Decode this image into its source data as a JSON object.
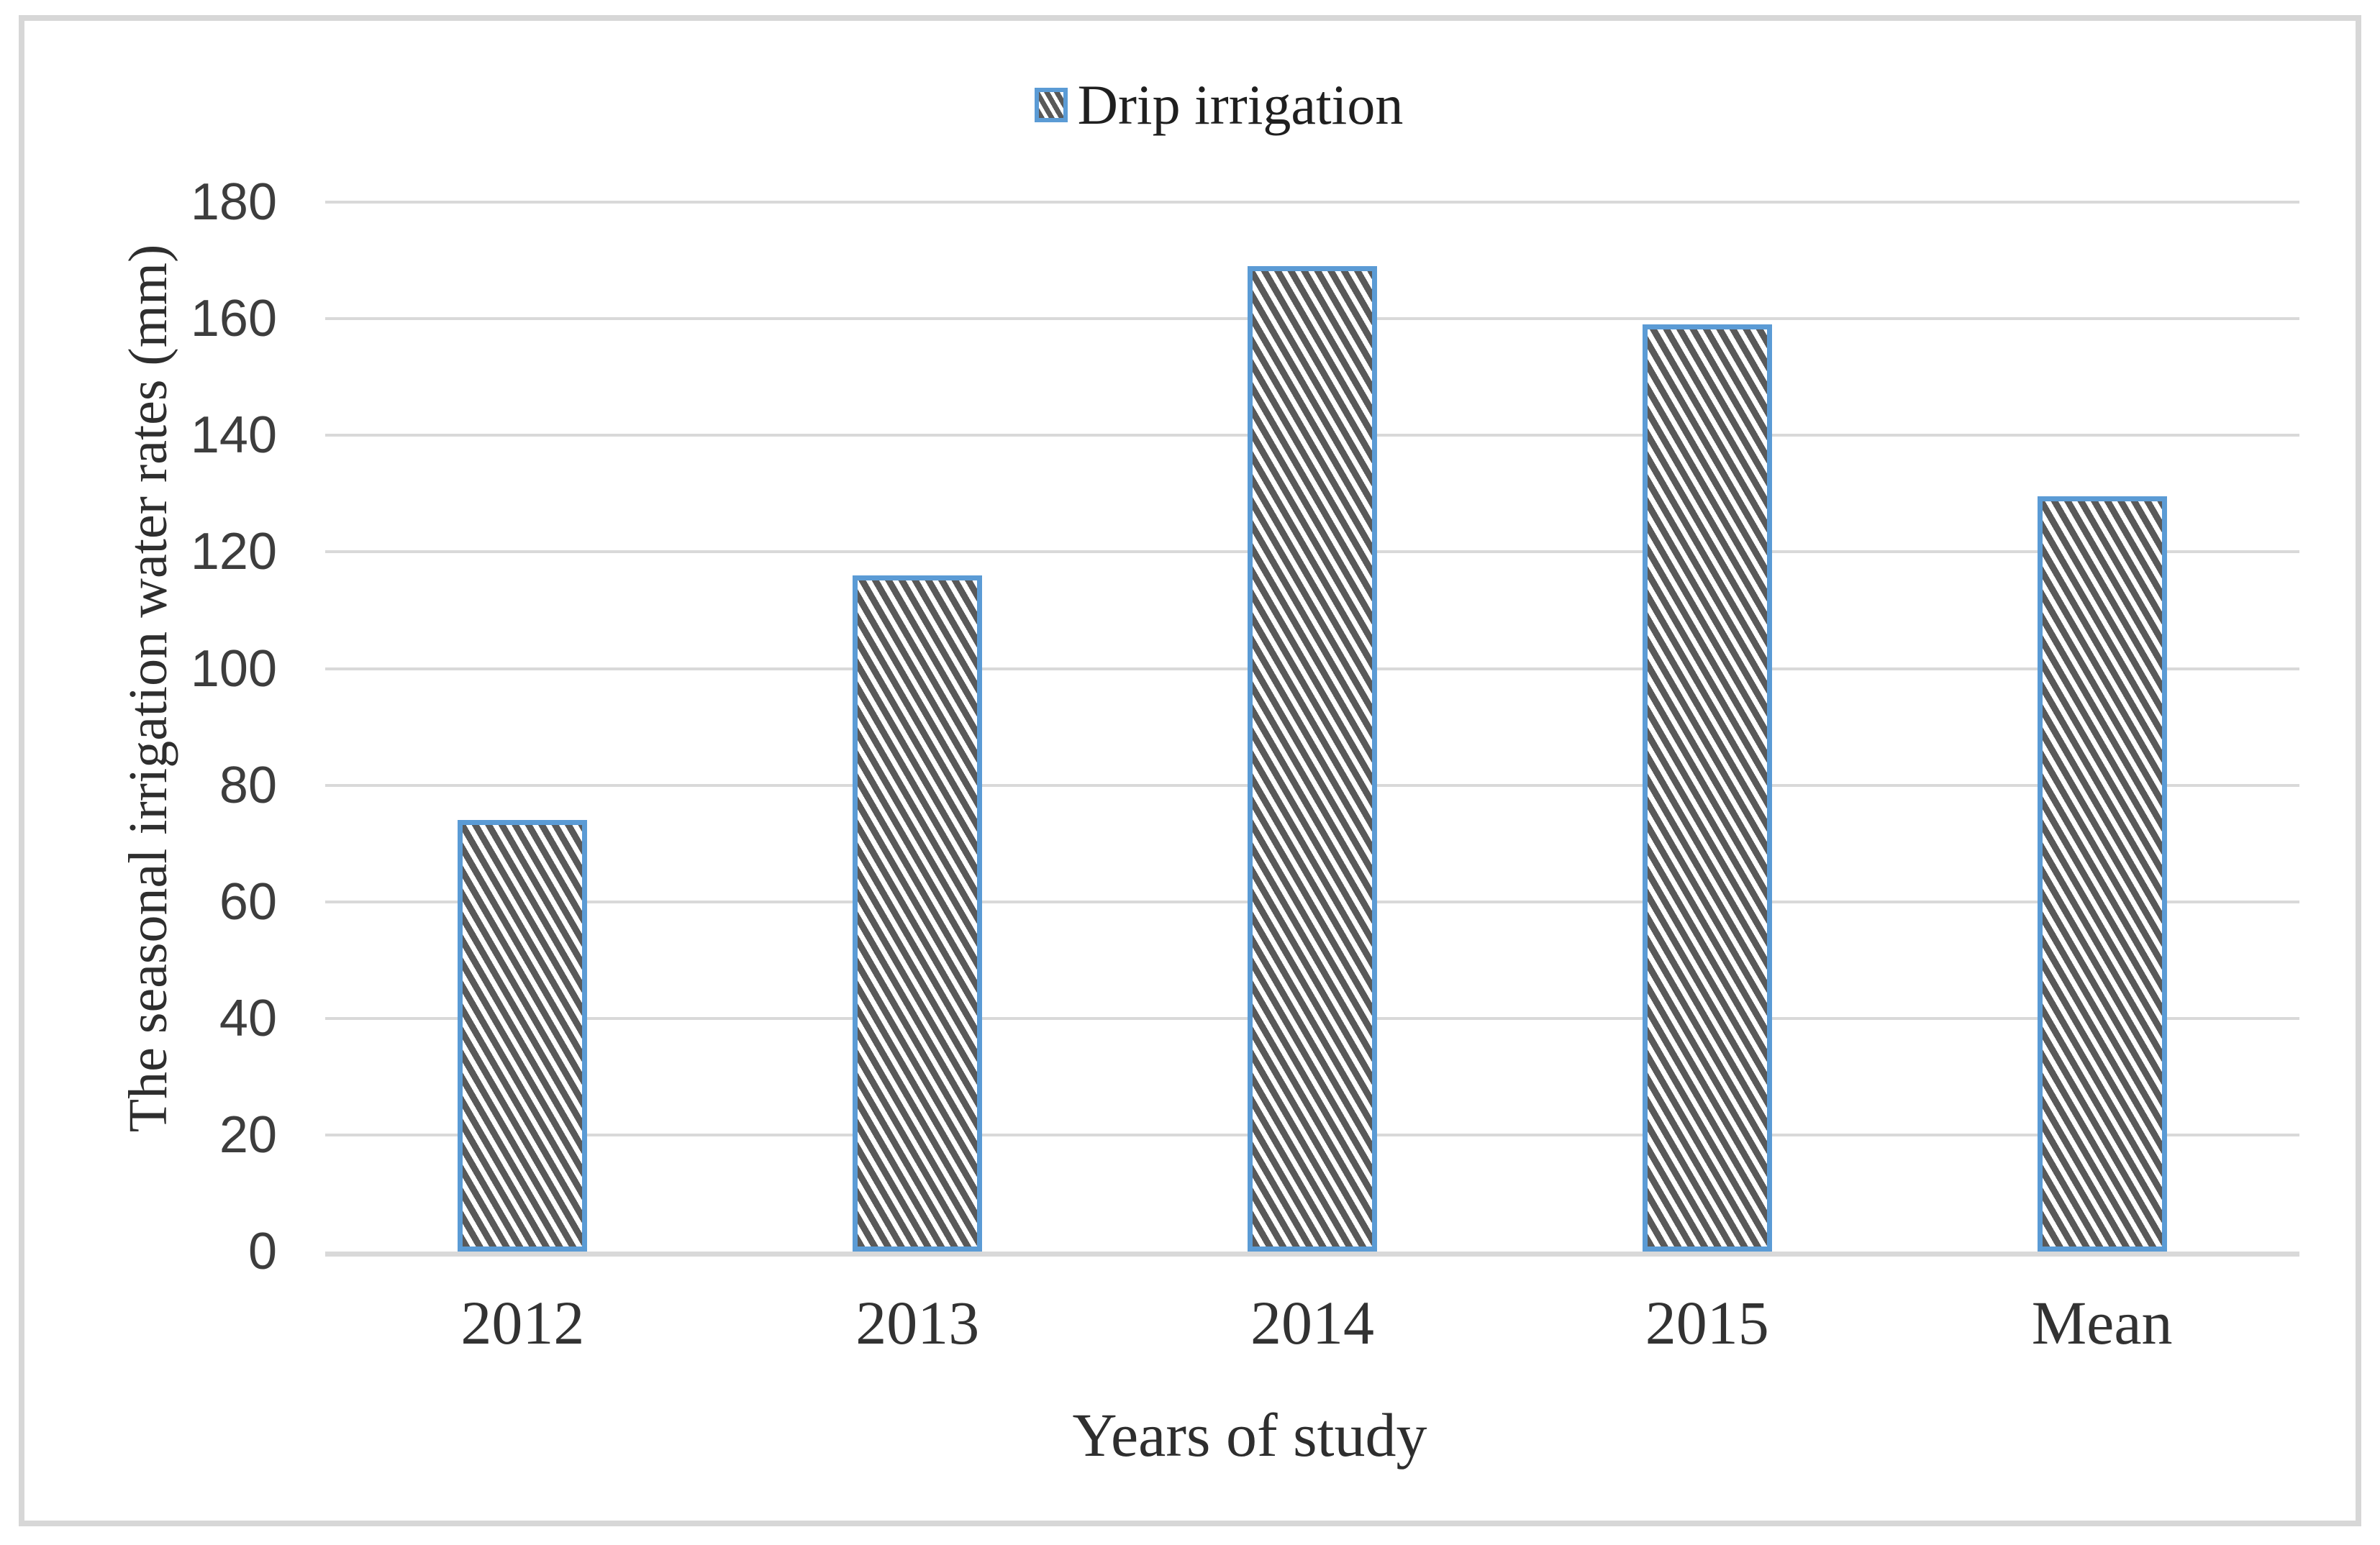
{
  "figure": {
    "background": "#ffffff",
    "border_color": "#d7d7d7"
  },
  "legend": {
    "label": "Drip irrigation",
    "swatch_border_color": "#5b9bd5",
    "swatch_hatch_color": "#595959",
    "position": "top-center"
  },
  "chart_data": {
    "type": "bar",
    "title": "",
    "categories": [
      "2012",
      "2013",
      "2014",
      "2015",
      "Mean"
    ],
    "series": [
      {
        "name": "Drip irrigation",
        "values": [
          74,
          116,
          169,
          159,
          129.5
        ]
      }
    ],
    "xlabel": "Years of study",
    "ylabel": "The seasonal irrigation water rates (mm)",
    "ylim": [
      0,
      180
    ],
    "ytick_step": 20,
    "yticks": [
      0,
      20,
      40,
      60,
      80,
      100,
      120,
      140,
      160,
      180
    ],
    "grid": true,
    "legend_position": "top",
    "bar_style": {
      "fill_pattern": "diagonal-hatch-downward",
      "hatch_color": "#595959",
      "pattern_background": "#ffffff",
      "border_color": "#5b9bd5",
      "gridline_color": "#d9d9d9",
      "tick_label_color": "#3d3d3d",
      "axis_text_color": "#2e2e2e"
    }
  }
}
